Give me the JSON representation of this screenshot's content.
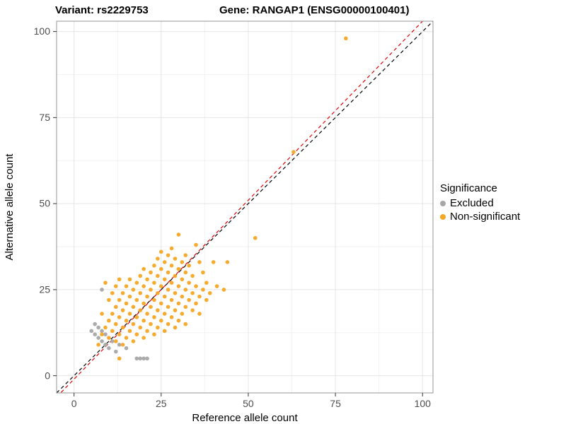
{
  "titles": {
    "variant": "Variant: rs2229753",
    "gene": "Gene: RANGAP1 (ENSG00000100401)"
  },
  "chart_data": {
    "type": "scatter",
    "xlabel": "Reference allele count",
    "ylabel": "Alternative allele count",
    "xlim": [
      -5,
      103
    ],
    "ylim": [
      -5,
      103
    ],
    "x_ticks": [
      0,
      25,
      50,
      75,
      100
    ],
    "y_ticks": [
      0,
      25,
      50,
      75,
      100
    ],
    "grid": true,
    "colors": {
      "grid_major": "#E4E4E4",
      "grid_minor": "#F2F2F2",
      "panel_border": "#969696",
      "tick": "#333333",
      "tick_label": "#4D4D4D"
    },
    "legend": {
      "title": "Significance",
      "position": "right",
      "entries": [
        {
          "label": "Excluded",
          "color": "#A6A6A6"
        },
        {
          "label": "Non-significant",
          "color": "#F5A623"
        }
      ]
    },
    "lines": [
      {
        "name": "identity",
        "slope": 1.0,
        "intercept": 0,
        "color": "#000000",
        "dash": "5,4"
      },
      {
        "name": "fit",
        "slope": 1.04,
        "intercept": -1,
        "color": "#E60000",
        "dash": "5,4"
      }
    ],
    "series": [
      {
        "name": "Excluded",
        "color": "#A6A6A6",
        "points": [
          [
            5,
            13
          ],
          [
            6,
            12
          ],
          [
            6,
            15
          ],
          [
            7,
            11
          ],
          [
            7,
            14
          ],
          [
            8,
            10
          ],
          [
            8,
            13
          ],
          [
            8,
            25
          ],
          [
            9,
            9
          ],
          [
            9,
            12
          ],
          [
            10,
            8
          ],
          [
            11,
            10
          ],
          [
            12,
            7
          ],
          [
            13,
            9
          ],
          [
            15,
            8
          ],
          [
            18,
            5
          ],
          [
            19,
            5
          ],
          [
            20,
            5
          ],
          [
            21,
            5
          ]
        ]
      },
      {
        "name": "Non-significant",
        "color": "#F5A623",
        "points": [
          [
            7,
            9
          ],
          [
            8,
            12
          ],
          [
            8,
            18
          ],
          [
            9,
            14
          ],
          [
            9,
            27
          ],
          [
            10,
            11
          ],
          [
            10,
            16
          ],
          [
            10,
            22
          ],
          [
            11,
            13
          ],
          [
            11,
            18
          ],
          [
            11,
            24
          ],
          [
            12,
            10
          ],
          [
            12,
            15
          ],
          [
            12,
            20
          ],
          [
            12,
            26
          ],
          [
            13,
            5
          ],
          [
            13,
            12
          ],
          [
            13,
            17
          ],
          [
            13,
            22
          ],
          [
            13,
            28
          ],
          [
            14,
            9
          ],
          [
            14,
            14
          ],
          [
            14,
            19
          ],
          [
            14,
            24
          ],
          [
            15,
            11
          ],
          [
            15,
            16
          ],
          [
            15,
            21
          ],
          [
            15,
            26
          ],
          [
            16,
            13
          ],
          [
            16,
            18
          ],
          [
            16,
            23
          ],
          [
            16,
            28
          ],
          [
            17,
            10
          ],
          [
            17,
            15
          ],
          [
            17,
            20
          ],
          [
            17,
            25
          ],
          [
            18,
            12
          ],
          [
            18,
            17
          ],
          [
            18,
            22
          ],
          [
            18,
            27
          ],
          [
            19,
            14
          ],
          [
            19,
            19
          ],
          [
            19,
            24
          ],
          [
            19,
            29
          ],
          [
            20,
            11
          ],
          [
            20,
            16
          ],
          [
            20,
            21
          ],
          [
            20,
            26
          ],
          [
            20,
            31
          ],
          [
            21,
            13
          ],
          [
            21,
            18
          ],
          [
            21,
            23
          ],
          [
            21,
            28
          ],
          [
            22,
            15
          ],
          [
            22,
            20
          ],
          [
            22,
            25
          ],
          [
            22,
            30
          ],
          [
            23,
            12
          ],
          [
            23,
            17
          ],
          [
            23,
            22
          ],
          [
            23,
            27
          ],
          [
            23,
            32
          ],
          [
            24,
            14
          ],
          [
            24,
            19
          ],
          [
            24,
            24
          ],
          [
            24,
            29
          ],
          [
            24,
            34
          ],
          [
            25,
            16
          ],
          [
            25,
            21
          ],
          [
            25,
            26
          ],
          [
            25,
            31
          ],
          [
            25,
            36
          ],
          [
            26,
            13
          ],
          [
            26,
            18
          ],
          [
            26,
            23
          ],
          [
            26,
            28
          ],
          [
            26,
            33
          ],
          [
            27,
            15
          ],
          [
            27,
            20
          ],
          [
            27,
            25
          ],
          [
            27,
            30
          ],
          [
            27,
            35
          ],
          [
            28,
            17
          ],
          [
            28,
            22
          ],
          [
            28,
            27
          ],
          [
            28,
            32
          ],
          [
            28,
            37
          ],
          [
            29,
            14
          ],
          [
            29,
            19
          ],
          [
            29,
            24
          ],
          [
            29,
            29
          ],
          [
            29,
            34
          ],
          [
            30,
            16
          ],
          [
            30,
            21
          ],
          [
            30,
            26
          ],
          [
            30,
            31
          ],
          [
            30,
            41
          ],
          [
            31,
            18
          ],
          [
            31,
            23
          ],
          [
            31,
            28
          ],
          [
            31,
            33
          ],
          [
            32,
            15
          ],
          [
            32,
            20
          ],
          [
            32,
            25
          ],
          [
            32,
            30
          ],
          [
            32,
            35
          ],
          [
            33,
            22
          ],
          [
            33,
            27
          ],
          [
            33,
            32
          ],
          [
            34,
            19
          ],
          [
            34,
            24
          ],
          [
            34,
            29
          ],
          [
            35,
            21
          ],
          [
            35,
            26
          ],
          [
            35,
            38
          ],
          [
            36,
            18
          ],
          [
            36,
            23
          ],
          [
            36,
            33
          ],
          [
            37,
            25
          ],
          [
            37,
            30
          ],
          [
            38,
            22
          ],
          [
            38,
            27
          ],
          [
            39,
            24
          ],
          [
            40,
            33
          ],
          [
            41,
            26
          ],
          [
            43,
            25
          ],
          [
            44,
            33
          ],
          [
            52,
            40
          ],
          [
            63,
            65
          ],
          [
            78,
            98
          ]
        ]
      }
    ]
  }
}
